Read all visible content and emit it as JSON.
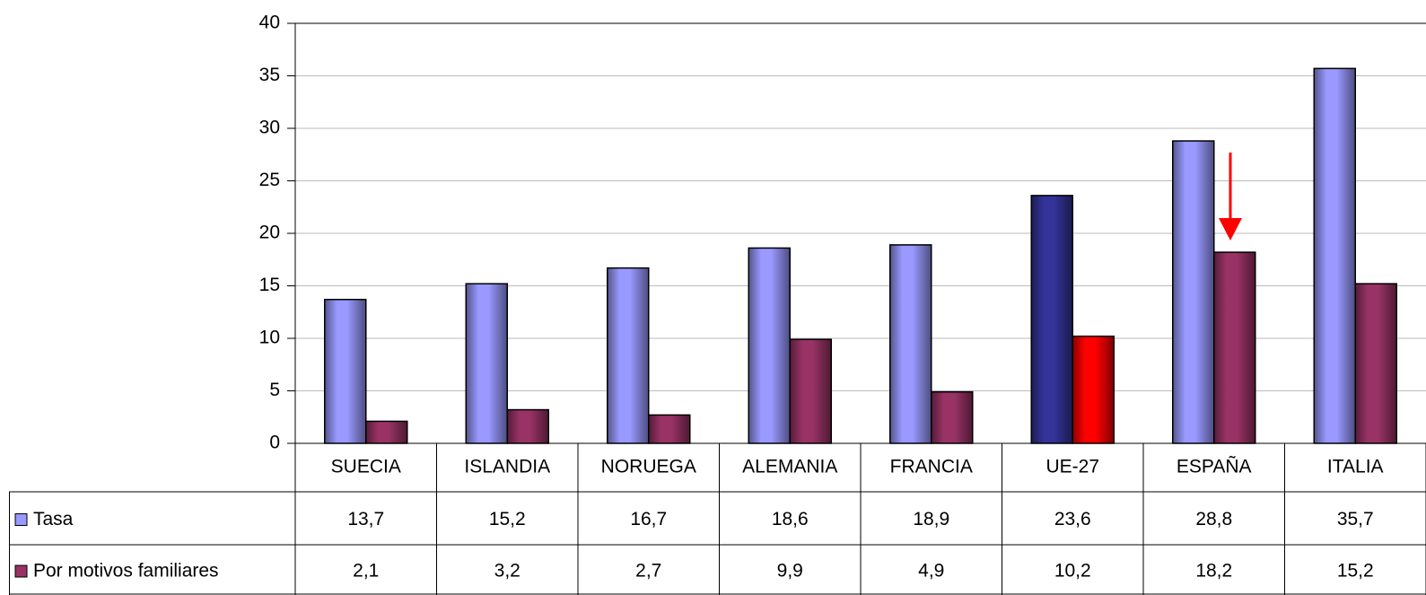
{
  "chart_data": {
    "type": "bar",
    "categories": [
      "SUECIA",
      "ISLANDIA",
      "NORUEGA",
      "ALEMANIA",
      "FRANCIA",
      "UE-27",
      "ESPAÑA",
      "ITALIA"
    ],
    "series": [
      {
        "name": "Tasa",
        "color": "#9999ff",
        "colors": [
          "#9999ff",
          "#9999ff",
          "#9999ff",
          "#9999ff",
          "#9999ff",
          "#333399",
          "#9999ff",
          "#9999ff"
        ],
        "values": [
          13.7,
          15.2,
          16.7,
          18.6,
          18.9,
          23.6,
          28.8,
          35.7
        ],
        "value_labels": [
          "13,7",
          "15,2",
          "16,7",
          "18,6",
          "18,9",
          "23,6",
          "28,8",
          "35,7"
        ]
      },
      {
        "name": "Por motivos familiares",
        "color": "#993366",
        "colors": [
          "#993366",
          "#993366",
          "#993366",
          "#993366",
          "#993366",
          "#ff0000",
          "#993366",
          "#993366"
        ],
        "values": [
          2.1,
          3.2,
          2.7,
          9.9,
          4.9,
          10.2,
          18.2,
          15.2
        ],
        "value_labels": [
          "2,1",
          "3,2",
          "2,7",
          "9,9",
          "4,9",
          "10,2",
          "18,2",
          "15,2"
        ]
      }
    ],
    "ylim": [
      0,
      40
    ],
    "yticks": [
      0,
      5,
      10,
      15,
      20,
      25,
      30,
      35,
      40
    ],
    "grid": true
  }
}
